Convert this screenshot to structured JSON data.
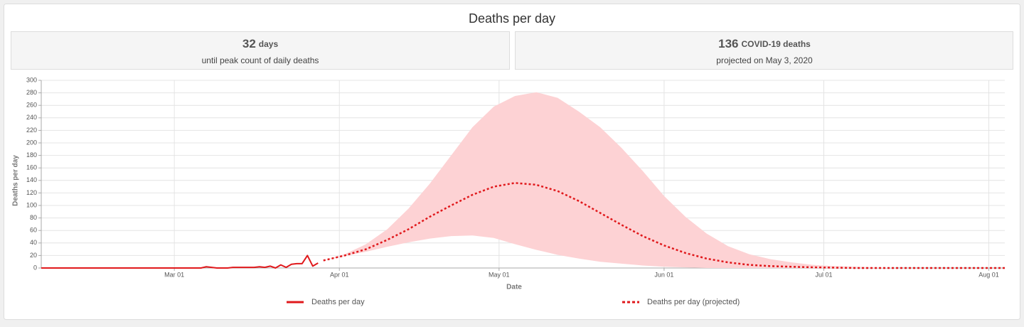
{
  "summary": [
    {
      "value": 32,
      "unit": "days",
      "caption": "until peak count of daily deaths"
    },
    {
      "value": 136,
      "unit": "COVID-19 deaths",
      "caption": "projected on May 3, 2020"
    }
  ],
  "chart_data": {
    "type": "line",
    "title": "Deaths per day",
    "x_label": "Date",
    "y_label": "Deaths per day",
    "xlim": [
      "2020-02-05",
      "2020-08-04"
    ],
    "xticks": [
      {
        "value": "2020-03-01",
        "label": "Mar 01"
      },
      {
        "value": "2020-04-01",
        "label": "Apr 01"
      },
      {
        "value": "2020-05-01",
        "label": "May 01"
      },
      {
        "value": "2020-06-01",
        "label": "Jun 01"
      },
      {
        "value": "2020-07-01",
        "label": "Jul 01"
      },
      {
        "value": "2020-08-01",
        "label": "Aug 01"
      }
    ],
    "ylim": [
      0,
      300
    ],
    "yticks": [
      0,
      20,
      40,
      60,
      80,
      100,
      120,
      140,
      160,
      180,
      200,
      220,
      240,
      260,
      280,
      300
    ],
    "grid": true,
    "legend": "bottom",
    "series": [
      {
        "name": "Deaths per day",
        "color": "#e0191c",
        "dash": false,
        "x": [
          "2020-02-05",
          "2020-03-06",
          "2020-03-07",
          "2020-03-08",
          "2020-03-09",
          "2020-03-10",
          "2020-03-11",
          "2020-03-12",
          "2020-03-13",
          "2020-03-14",
          "2020-03-15",
          "2020-03-16",
          "2020-03-17",
          "2020-03-18",
          "2020-03-19",
          "2020-03-20",
          "2020-03-21",
          "2020-03-22",
          "2020-03-23",
          "2020-03-24",
          "2020-03-25",
          "2020-03-26",
          "2020-03-27",
          "2020-03-28"
        ],
        "values": [
          0,
          0,
          2,
          1,
          0,
          0,
          0,
          1,
          1,
          1,
          1,
          1,
          2,
          1,
          3,
          0,
          5,
          1,
          6,
          7,
          7,
          20,
          3,
          8
        ]
      },
      {
        "name": "Deaths per day (projected)",
        "color": "#e0191c",
        "dash": true,
        "x": [
          "2020-03-29",
          "2020-04-02",
          "2020-04-06",
          "2020-04-10",
          "2020-04-14",
          "2020-04-18",
          "2020-04-22",
          "2020-04-26",
          "2020-04-30",
          "2020-05-04",
          "2020-05-08",
          "2020-05-12",
          "2020-05-16",
          "2020-05-20",
          "2020-05-24",
          "2020-05-28",
          "2020-06-01",
          "2020-06-05",
          "2020-06-09",
          "2020-06-13",
          "2020-06-17",
          "2020-06-21",
          "2020-06-25",
          "2020-06-29",
          "2020-07-03",
          "2020-07-07",
          "2020-07-11",
          "2020-07-15",
          "2020-07-19",
          "2020-07-23",
          "2020-07-27",
          "2020-07-31",
          "2020-08-04"
        ],
        "values": [
          12,
          20,
          30,
          45,
          62,
          82,
          100,
          117,
          130,
          136,
          133,
          123,
          107,
          88,
          69,
          51,
          36,
          24,
          15,
          9,
          5,
          3,
          2,
          1,
          0.5,
          0,
          0,
          0,
          0,
          0,
          0,
          0,
          0
        ]
      }
    ],
    "band": {
      "color": "#fdd2d4",
      "x": [
        "2020-03-29",
        "2020-04-02",
        "2020-04-06",
        "2020-04-10",
        "2020-04-14",
        "2020-04-18",
        "2020-04-22",
        "2020-04-26",
        "2020-04-30",
        "2020-05-04",
        "2020-05-08",
        "2020-05-12",
        "2020-05-16",
        "2020-05-20",
        "2020-05-24",
        "2020-05-28",
        "2020-06-01",
        "2020-06-05",
        "2020-06-09",
        "2020-06-13",
        "2020-06-17",
        "2020-06-21",
        "2020-06-25",
        "2020-06-29",
        "2020-07-03",
        "2020-07-07",
        "2020-07-11",
        "2020-07-15",
        "2020-07-19",
        "2020-07-23",
        "2020-07-27",
        "2020-07-31",
        "2020-08-04"
      ],
      "upper": [
        12,
        22,
        38,
        62,
        95,
        135,
        180,
        225,
        258,
        275,
        281,
        272,
        250,
        225,
        192,
        155,
        115,
        82,
        55,
        35,
        22,
        14,
        9,
        5,
        3,
        2,
        1,
        0,
        0,
        0,
        0,
        0,
        0
      ],
      "lower": [
        12,
        19,
        26,
        34,
        41,
        47,
        51,
        52,
        48,
        38,
        29,
        21,
        15,
        10,
        7,
        4,
        2,
        1,
        0,
        0,
        0,
        0,
        0,
        0,
        0,
        0,
        0,
        0,
        0,
        0,
        0,
        0,
        0
      ]
    }
  }
}
